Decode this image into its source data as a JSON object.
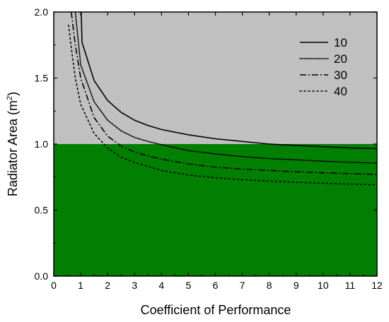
{
  "chart_data": {
    "type": "line",
    "title": "",
    "xlabel": "Coefficient of Performance",
    "ylabel_main": "Radiator Area (m",
    "ylabel_sup": "2",
    "ylabel_close": ")",
    "xlim": [
      0,
      12
    ],
    "ylim": [
      0,
      2.0
    ],
    "x_ticks": [
      0,
      1,
      2,
      3,
      4,
      5,
      6,
      7,
      8,
      9,
      10,
      11,
      12
    ],
    "y_ticks": [
      0.0,
      0.5,
      1.0,
      1.5,
      2.0
    ],
    "y_tick_labels": [
      "0.0",
      "0.5",
      "1.0",
      "1.5",
      "2.0"
    ],
    "regions": [
      {
        "y_from": 1.0,
        "y_to": 2.0,
        "color": "#c0c0c0"
      },
      {
        "y_from": 0.0,
        "y_to": 1.0,
        "color": "#007f00"
      }
    ],
    "grid": false,
    "legend_position": "top-right",
    "series": [
      {
        "name": "10",
        "style": "solid",
        "x": [
          1.02,
          1.05,
          1.5,
          2.0,
          2.5,
          3.0,
          3.5,
          4,
          5,
          6,
          7,
          8,
          9,
          10,
          11,
          12
        ],
        "y": [
          2.0,
          1.77,
          1.48,
          1.33,
          1.24,
          1.18,
          1.14,
          1.11,
          1.07,
          1.04,
          1.02,
          1.0,
          0.99,
          0.98,
          0.97,
          0.965
        ]
      },
      {
        "name": "20",
        "style": "dotted",
        "x": [
          0.8,
          1.0,
          1.5,
          2.0,
          2.5,
          3.0,
          3.5,
          4,
          5,
          6,
          7,
          8,
          9,
          10,
          11,
          12
        ],
        "y": [
          2.0,
          1.6,
          1.32,
          1.18,
          1.1,
          1.05,
          1.02,
          0.995,
          0.95,
          0.925,
          0.905,
          0.89,
          0.88,
          0.87,
          0.862,
          0.855
        ]
      },
      {
        "name": "30",
        "style": "dashdot",
        "x": [
          0.65,
          0.8,
          1.0,
          1.5,
          2.0,
          2.5,
          3.0,
          3.5,
          4,
          5,
          6,
          7,
          8,
          9,
          10,
          11,
          12
        ],
        "y": [
          2.0,
          1.75,
          1.5,
          1.2,
          1.06,
          0.985,
          0.94,
          0.91,
          0.885,
          0.85,
          0.825,
          0.81,
          0.8,
          0.79,
          0.782,
          0.776,
          0.77
        ]
      },
      {
        "name": "40",
        "style": "short-dot",
        "x": [
          0.55,
          0.7,
          0.8,
          1.0,
          1.5,
          2.0,
          2.5,
          3.0,
          3.5,
          4,
          5,
          6,
          7,
          8,
          9,
          10,
          11,
          12
        ],
        "y": [
          1.9,
          1.65,
          1.5,
          1.3,
          1.08,
          0.97,
          0.9,
          0.86,
          0.83,
          0.8,
          0.765,
          0.745,
          0.73,
          0.72,
          0.71,
          0.703,
          0.697,
          0.692
        ]
      }
    ]
  }
}
